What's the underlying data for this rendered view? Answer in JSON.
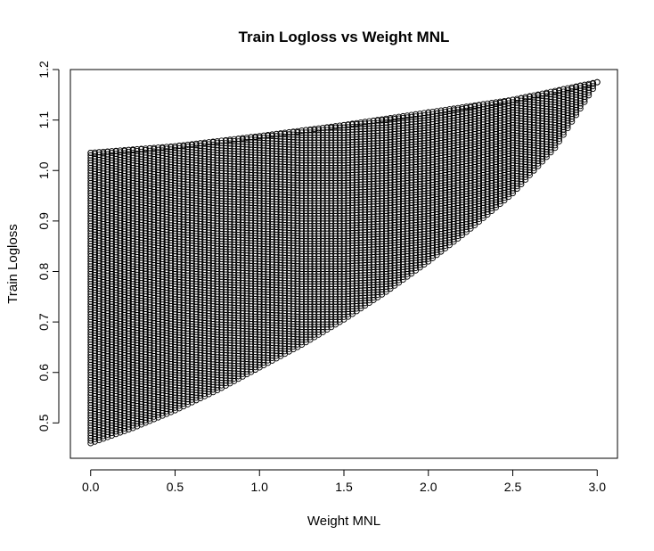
{
  "chart_data": {
    "type": "scatter",
    "title": "Train Logloss vs Weight MNL",
    "xlabel": "Weight MNL",
    "ylabel": "Train Logloss",
    "xlim": [
      -0.12,
      3.12
    ],
    "ylim": [
      0.43,
      1.2
    ],
    "xticks": [
      0.0,
      0.5,
      1.0,
      1.5,
      2.0,
      2.5,
      3.0
    ],
    "xtick_labels": [
      "0.0",
      "0.5",
      "1.0",
      "1.5",
      "2.0",
      "2.5",
      "3.0"
    ],
    "yticks": [
      0.5,
      0.6,
      0.7,
      0.8,
      0.9,
      1.0,
      1.1,
      1.2
    ],
    "ytick_labels": [
      "0.5",
      "0.6",
      "0.7",
      "0.8",
      "0.9",
      "1.0",
      "1.1",
      "1.2"
    ],
    "grid": false,
    "legend": "none",
    "marker": "open-circle",
    "color": "#000000",
    "region": {
      "x_min": 0.0,
      "x_max": 3.0,
      "x_step": 0.025,
      "y_step": 0.005,
      "upper_boundary": [
        [
          0.0,
          1.035
        ],
        [
          0.5,
          1.048
        ],
        [
          1.0,
          1.068
        ],
        [
          1.5,
          1.09
        ],
        [
          2.0,
          1.115
        ],
        [
          2.5,
          1.14
        ],
        [
          3.0,
          1.175
        ]
      ],
      "lower_boundary": [
        [
          0.0,
          0.46
        ],
        [
          0.25,
          0.49
        ],
        [
          0.5,
          0.525
        ],
        [
          0.75,
          0.565
        ],
        [
          1.0,
          0.61
        ],
        [
          1.25,
          0.655
        ],
        [
          1.5,
          0.705
        ],
        [
          1.75,
          0.76
        ],
        [
          2.0,
          0.82
        ],
        [
          2.25,
          0.885
        ],
        [
          2.5,
          0.955
        ],
        [
          2.75,
          1.045
        ],
        [
          3.0,
          1.175
        ]
      ]
    }
  }
}
